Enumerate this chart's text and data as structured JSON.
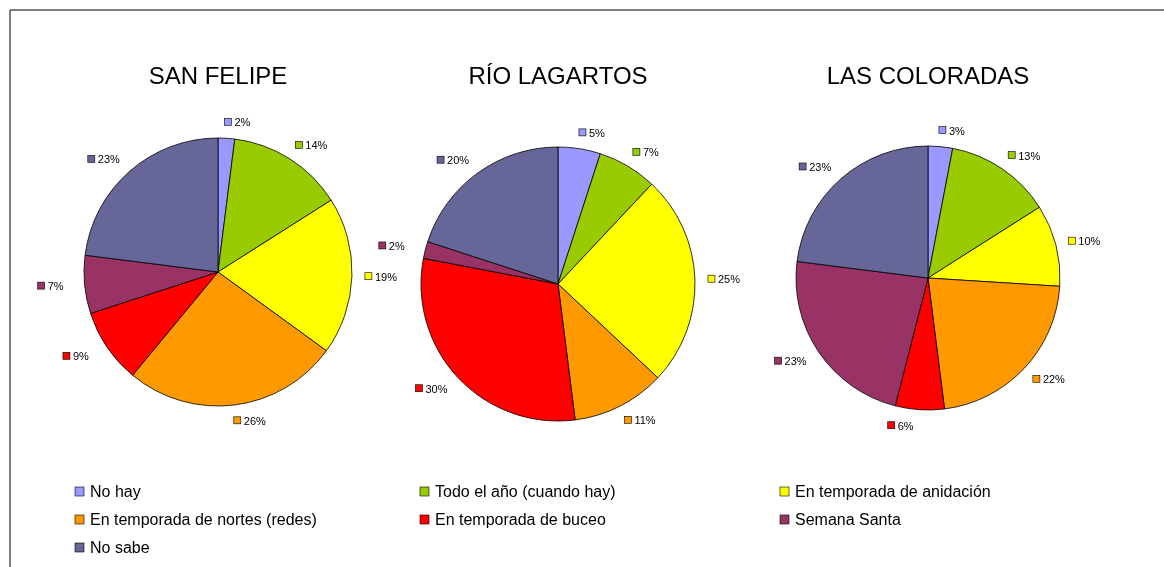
{
  "chart_data": [
    {
      "type": "pie",
      "title": "SAN FELIPE",
      "categories": [
        "No hay",
        "Todo el año (cuando hay)",
        "En temporada de anidación",
        "En temporada de nortes (redes)",
        "En temporada de buceo",
        "Semana Santa",
        "No sabe"
      ],
      "values": [
        2,
        14,
        19,
        26,
        9,
        7,
        23
      ],
      "value_labels": [
        "2%",
        "14%",
        "19%",
        "26%",
        "9%",
        "7%",
        "23%"
      ],
      "colors": [
        "#9999ff",
        "#99cc00",
        "#ffff00",
        "#ff9900",
        "#ff0000",
        "#993366",
        "#666699"
      ],
      "legend": "bottom"
    },
    {
      "type": "pie",
      "title": "RÍO LAGARTOS",
      "categories": [
        null,
        null,
        null,
        null,
        null,
        null,
        null
      ],
      "values": [
        5,
        7,
        25,
        11,
        30,
        2,
        20
      ],
      "value_labels": [
        "5%",
        "7%",
        "25%",
        "11%",
        "30%",
        "2%",
        "20%"
      ],
      "colors": [
        "#9999ff",
        "#99cc00",
        "#ffff00",
        "#ff9900",
        "#ff0000",
        "#993366",
        "#666699"
      ]
    },
    {
      "type": "pie",
      "title": "LAS COLORADAS",
      "categories": [
        null,
        null,
        null,
        null,
        null,
        null,
        null
      ],
      "values": [
        3,
        13,
        10,
        22,
        6,
        23,
        23
      ],
      "value_labels": [
        "3%",
        "13%",
        "10%",
        "22%",
        "6%",
        "23%",
        "23%"
      ],
      "colors": [
        "#9999ff",
        "#99cc00",
        "#ffff00",
        "#ff9900",
        "#ff0000",
        "#993366",
        "#666699"
      ]
    }
  ]
}
